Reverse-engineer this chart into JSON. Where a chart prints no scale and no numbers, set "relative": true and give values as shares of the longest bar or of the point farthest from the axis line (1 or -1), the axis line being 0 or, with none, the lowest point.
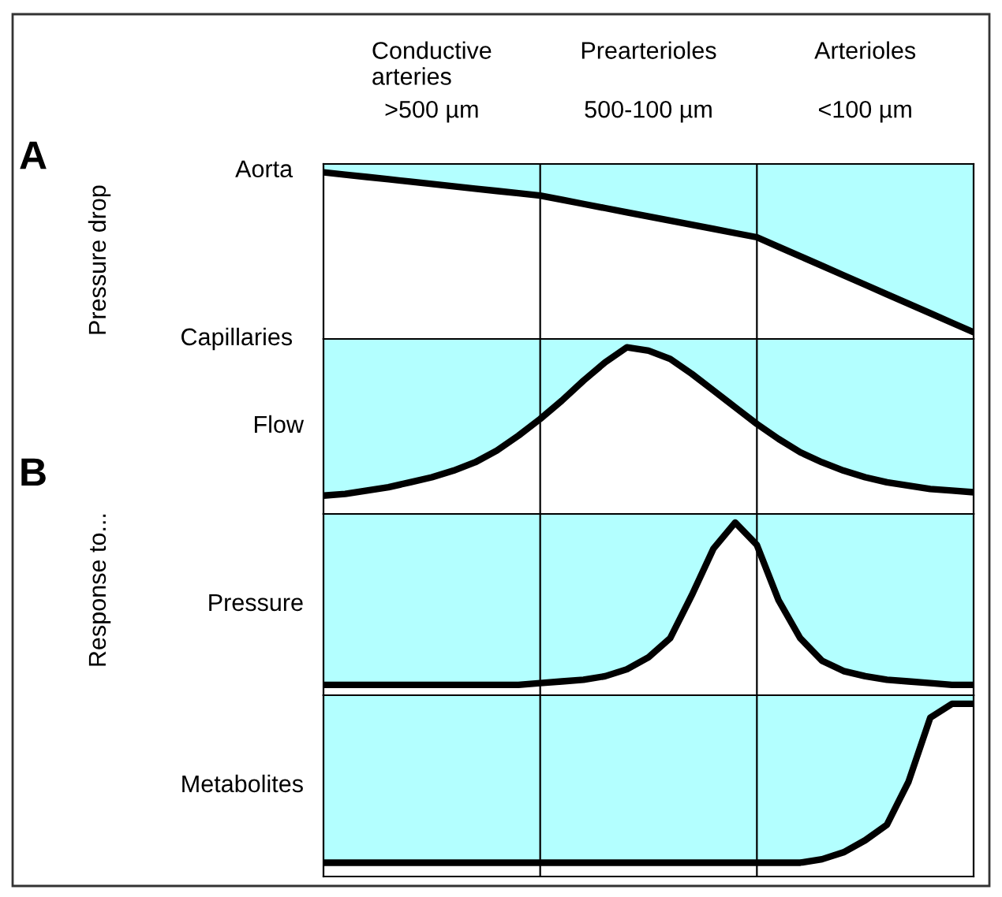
{
  "chart_data": [
    {
      "type": "area",
      "relative": true,
      "ylabel": "Pressure drop",
      "categories": [
        null,
        null,
        null,
        null,
        null,
        null,
        null,
        null,
        null,
        null,
        null,
        null,
        null,
        null,
        null,
        null,
        null,
        null,
        null,
        null,
        null,
        null,
        null,
        null,
        null,
        null,
        null,
        null,
        null,
        null,
        null
      ],
      "tick_labels": false,
      "line_style": "solid",
      "annotations": [
        "A",
        "Conductive\narteries",
        "Prearterioles",
        "Arterioles",
        ">500 µm",
        "500-100 µm",
        "<100 µm",
        "Aorta",
        "Capillaries"
      ],
      "series": [
        {
          "color": "#000000",
          "values": [
            1.0,
            0.986,
            0.972,
            0.958,
            0.944,
            0.93,
            0.916,
            0.902,
            0.888,
            0.874,
            0.86,
            0.835,
            0.81,
            0.785,
            0.76,
            0.735,
            0.71,
            0.685,
            0.66,
            0.635,
            0.61,
            0.553,
            0.496,
            0.439,
            0.382,
            0.325,
            0.268,
            0.211,
            0.154,
            0.097,
            0.04
          ]
        }
      ]
    },
    {
      "type": "area",
      "relative": true,
      "categories": [
        null,
        null,
        null,
        null,
        null,
        null,
        null,
        null,
        null,
        null,
        null,
        null,
        null,
        null,
        null,
        null,
        null,
        null,
        null,
        null,
        null,
        null,
        null,
        null,
        null,
        null,
        null,
        null,
        null,
        null,
        null
      ],
      "tick_labels": false,
      "line_style": "solid",
      "annotations": [
        "B"
      ],
      "series": [
        {
          "name": "Flow",
          "color": "#000000",
          "values": [
            0.11,
            0.12,
            0.14,
            0.16,
            0.19,
            0.22,
            0.26,
            0.31,
            0.38,
            0.47,
            0.57,
            0.68,
            0.8,
            0.91,
            1.0,
            0.98,
            0.93,
            0.84,
            0.74,
            0.64,
            0.54,
            0.45,
            0.37,
            0.31,
            0.26,
            0.22,
            0.19,
            0.17,
            0.15,
            0.14,
            0.13
          ]
        }
      ]
    },
    {
      "type": "area",
      "relative": true,
      "ylabel": "Response to...",
      "categories": [
        null,
        null,
        null,
        null,
        null,
        null,
        null,
        null,
        null,
        null,
        null,
        null,
        null,
        null,
        null,
        null,
        null,
        null,
        null,
        null,
        null,
        null,
        null,
        null,
        null,
        null,
        null,
        null,
        null,
        null,
        null
      ],
      "tick_labels": false,
      "line_style": "solid",
      "series": [
        {
          "name": "Pressure",
          "color": "#000000",
          "values": [
            0.06,
            0.06,
            0.06,
            0.06,
            0.06,
            0.06,
            0.06,
            0.06,
            0.06,
            0.06,
            0.07,
            0.08,
            0.09,
            0.11,
            0.15,
            0.22,
            0.33,
            0.58,
            0.85,
            1.0,
            0.87,
            0.55,
            0.33,
            0.2,
            0.14,
            0.11,
            0.09,
            0.08,
            0.07,
            0.06,
            0.06
          ]
        }
      ]
    },
    {
      "type": "area",
      "relative": true,
      "categories": [
        null,
        null,
        null,
        null,
        null,
        null,
        null,
        null,
        null,
        null,
        null,
        null,
        null,
        null,
        null,
        null,
        null,
        null,
        null,
        null,
        null,
        null,
        null,
        null,
        null,
        null,
        null,
        null,
        null,
        null,
        null
      ],
      "tick_labels": false,
      "line_style": "solid",
      "series": [
        {
          "name": "Metabolites",
          "color": "#000000",
          "values": [
            0.08,
            0.08,
            0.08,
            0.08,
            0.08,
            0.08,
            0.08,
            0.08,
            0.08,
            0.08,
            0.08,
            0.08,
            0.08,
            0.08,
            0.08,
            0.08,
            0.08,
            0.08,
            0.08,
            0.08,
            0.08,
            0.08,
            0.08,
            0.1,
            0.14,
            0.21,
            0.3,
            0.55,
            0.92,
            1.0,
            1.0
          ]
        }
      ]
    }
  ]
}
